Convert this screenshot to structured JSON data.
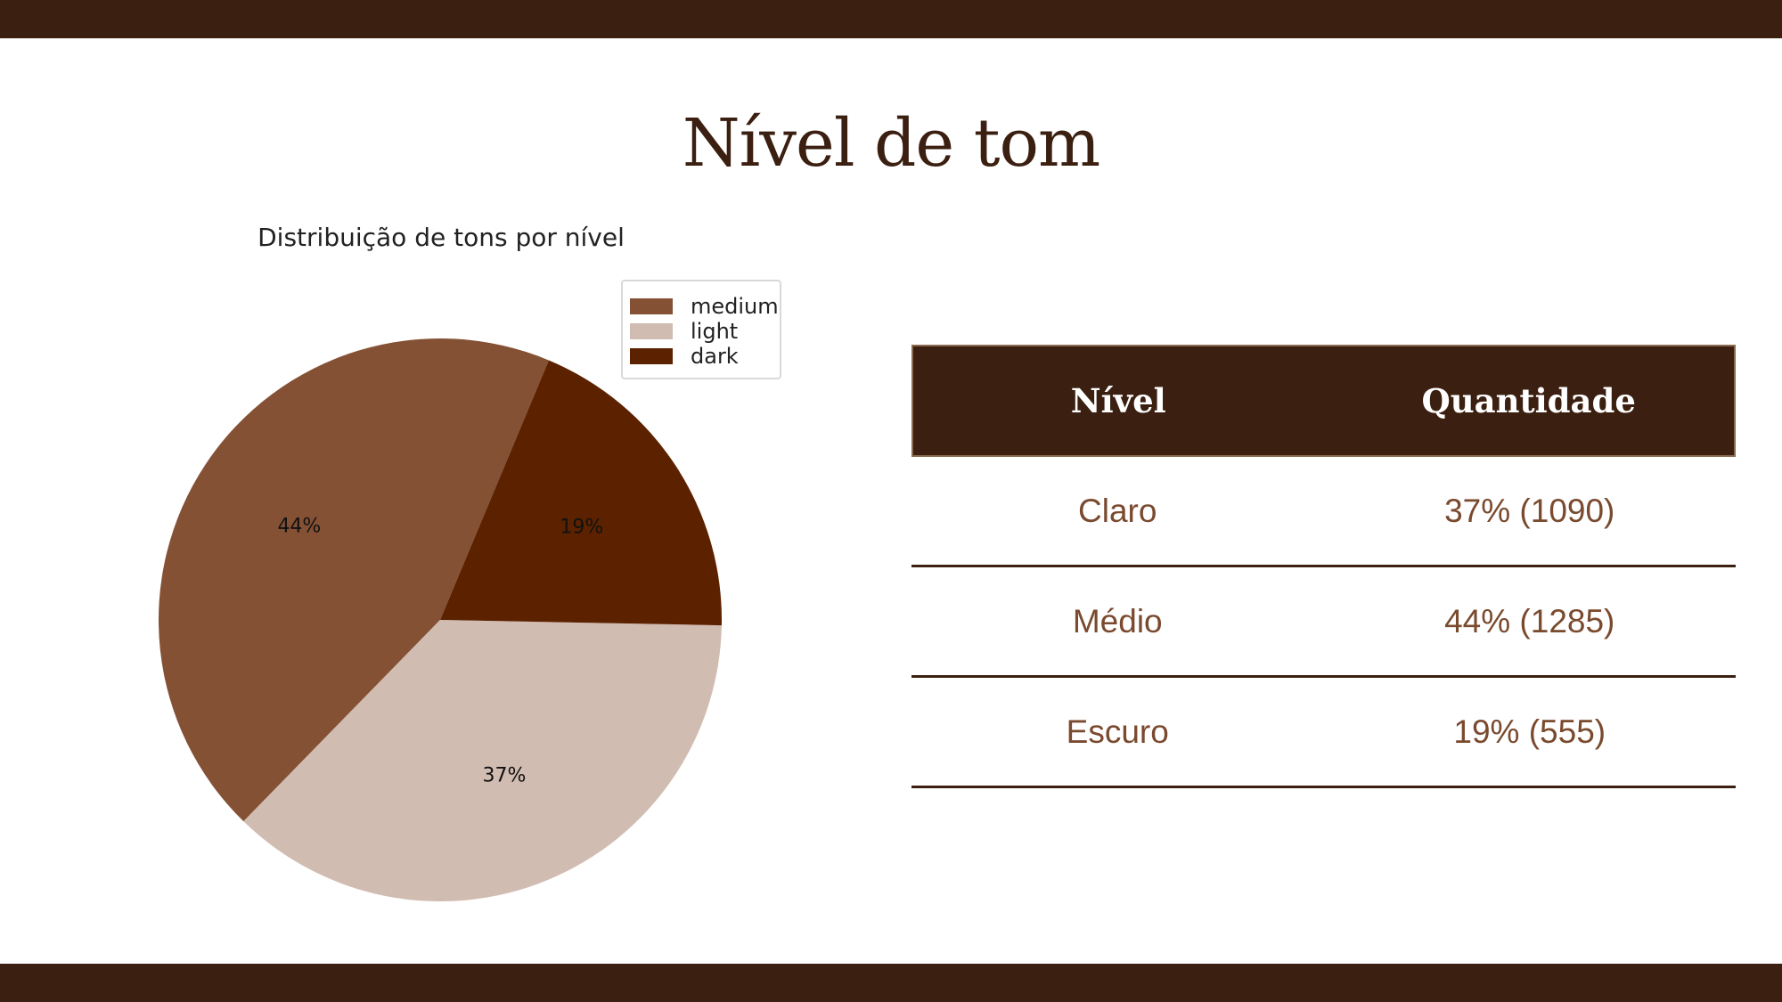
{
  "slide": {
    "title": "Nível de tom",
    "colors": {
      "band": "#3b1f10",
      "title": "#3b1f10",
      "table_text": "#7a4a2e"
    }
  },
  "chart_data": {
    "type": "pie",
    "title": "Distribuição de tons por nível",
    "slices": [
      {
        "name": "medium",
        "value": 44,
        "label": "44%",
        "color": "#845135"
      },
      {
        "name": "light",
        "value": 37,
        "label": "37%",
        "color": "#d1bcb1"
      },
      {
        "name": "dark",
        "value": 19,
        "label": "19%",
        "color": "#5c2200"
      }
    ],
    "legend": {
      "position": "top-right",
      "entries": [
        "medium",
        "light",
        "dark"
      ]
    }
  },
  "table": {
    "headers": [
      "Nível",
      "Quantidade"
    ],
    "rows": [
      [
        "Claro",
        "37% (1090)"
      ],
      [
        "Médio",
        "44% (1285)"
      ],
      [
        "Escuro",
        "19% (555)"
      ]
    ]
  }
}
